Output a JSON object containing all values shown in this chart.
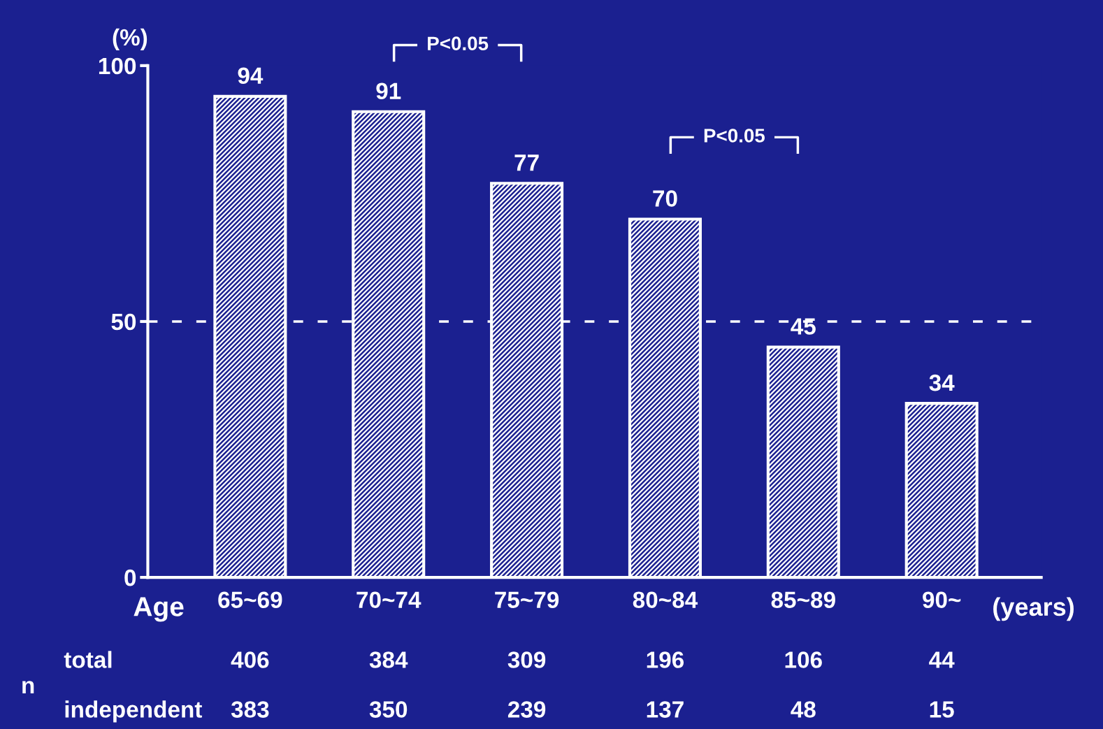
{
  "chart_data": {
    "type": "bar",
    "ylabel": "(%)",
    "xlabel": "Age",
    "categories": [
      "65~69",
      "70~74",
      "75~79",
      "80~84",
      "85~89",
      "90~"
    ],
    "values": [
      94,
      91,
      77,
      70,
      45,
      34
    ],
    "color": "#ffffff",
    "ylim": [
      0,
      100
    ],
    "yticks": [
      0,
      50,
      100
    ],
    "grid": false,
    "data_labels": true,
    "ref_lines": [
      {
        "axis": "y",
        "value": 50,
        "color": "#ffffff",
        "line_style": "dashed"
      }
    ],
    "annotations": [
      "P<0.05",
      "P<0.05",
      "(years)",
      "n",
      "total",
      "406",
      "384",
      "309",
      "196",
      "106",
      "44",
      "independent",
      "383",
      "350",
      "239",
      "137",
      "48",
      "15"
    ]
  }
}
